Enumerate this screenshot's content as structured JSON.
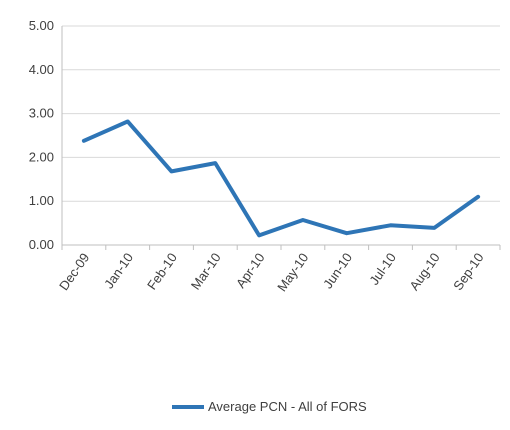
{
  "chart_data": {
    "type": "line",
    "title": "",
    "xlabel": "",
    "ylabel": "",
    "categories": [
      "Dec-09",
      "Jan-10",
      "Feb-10",
      "Mar-10",
      "Apr-10",
      "May-10",
      "Jun-10",
      "Jul-10",
      "Aug-10",
      "Sep-10"
    ],
    "series": [
      {
        "name": "Average PCN - All of FORS",
        "color": "#2e75b6",
        "values": [
          2.38,
          2.82,
          1.68,
          1.87,
          0.22,
          0.57,
          0.27,
          0.45,
          0.39,
          1.1
        ]
      }
    ],
    "ylim": [
      0,
      5
    ],
    "yticks": [
      "0.00",
      "1.00",
      "2.00",
      "3.00",
      "4.00",
      "5.00"
    ],
    "grid": true,
    "legend_position": "bottom"
  }
}
